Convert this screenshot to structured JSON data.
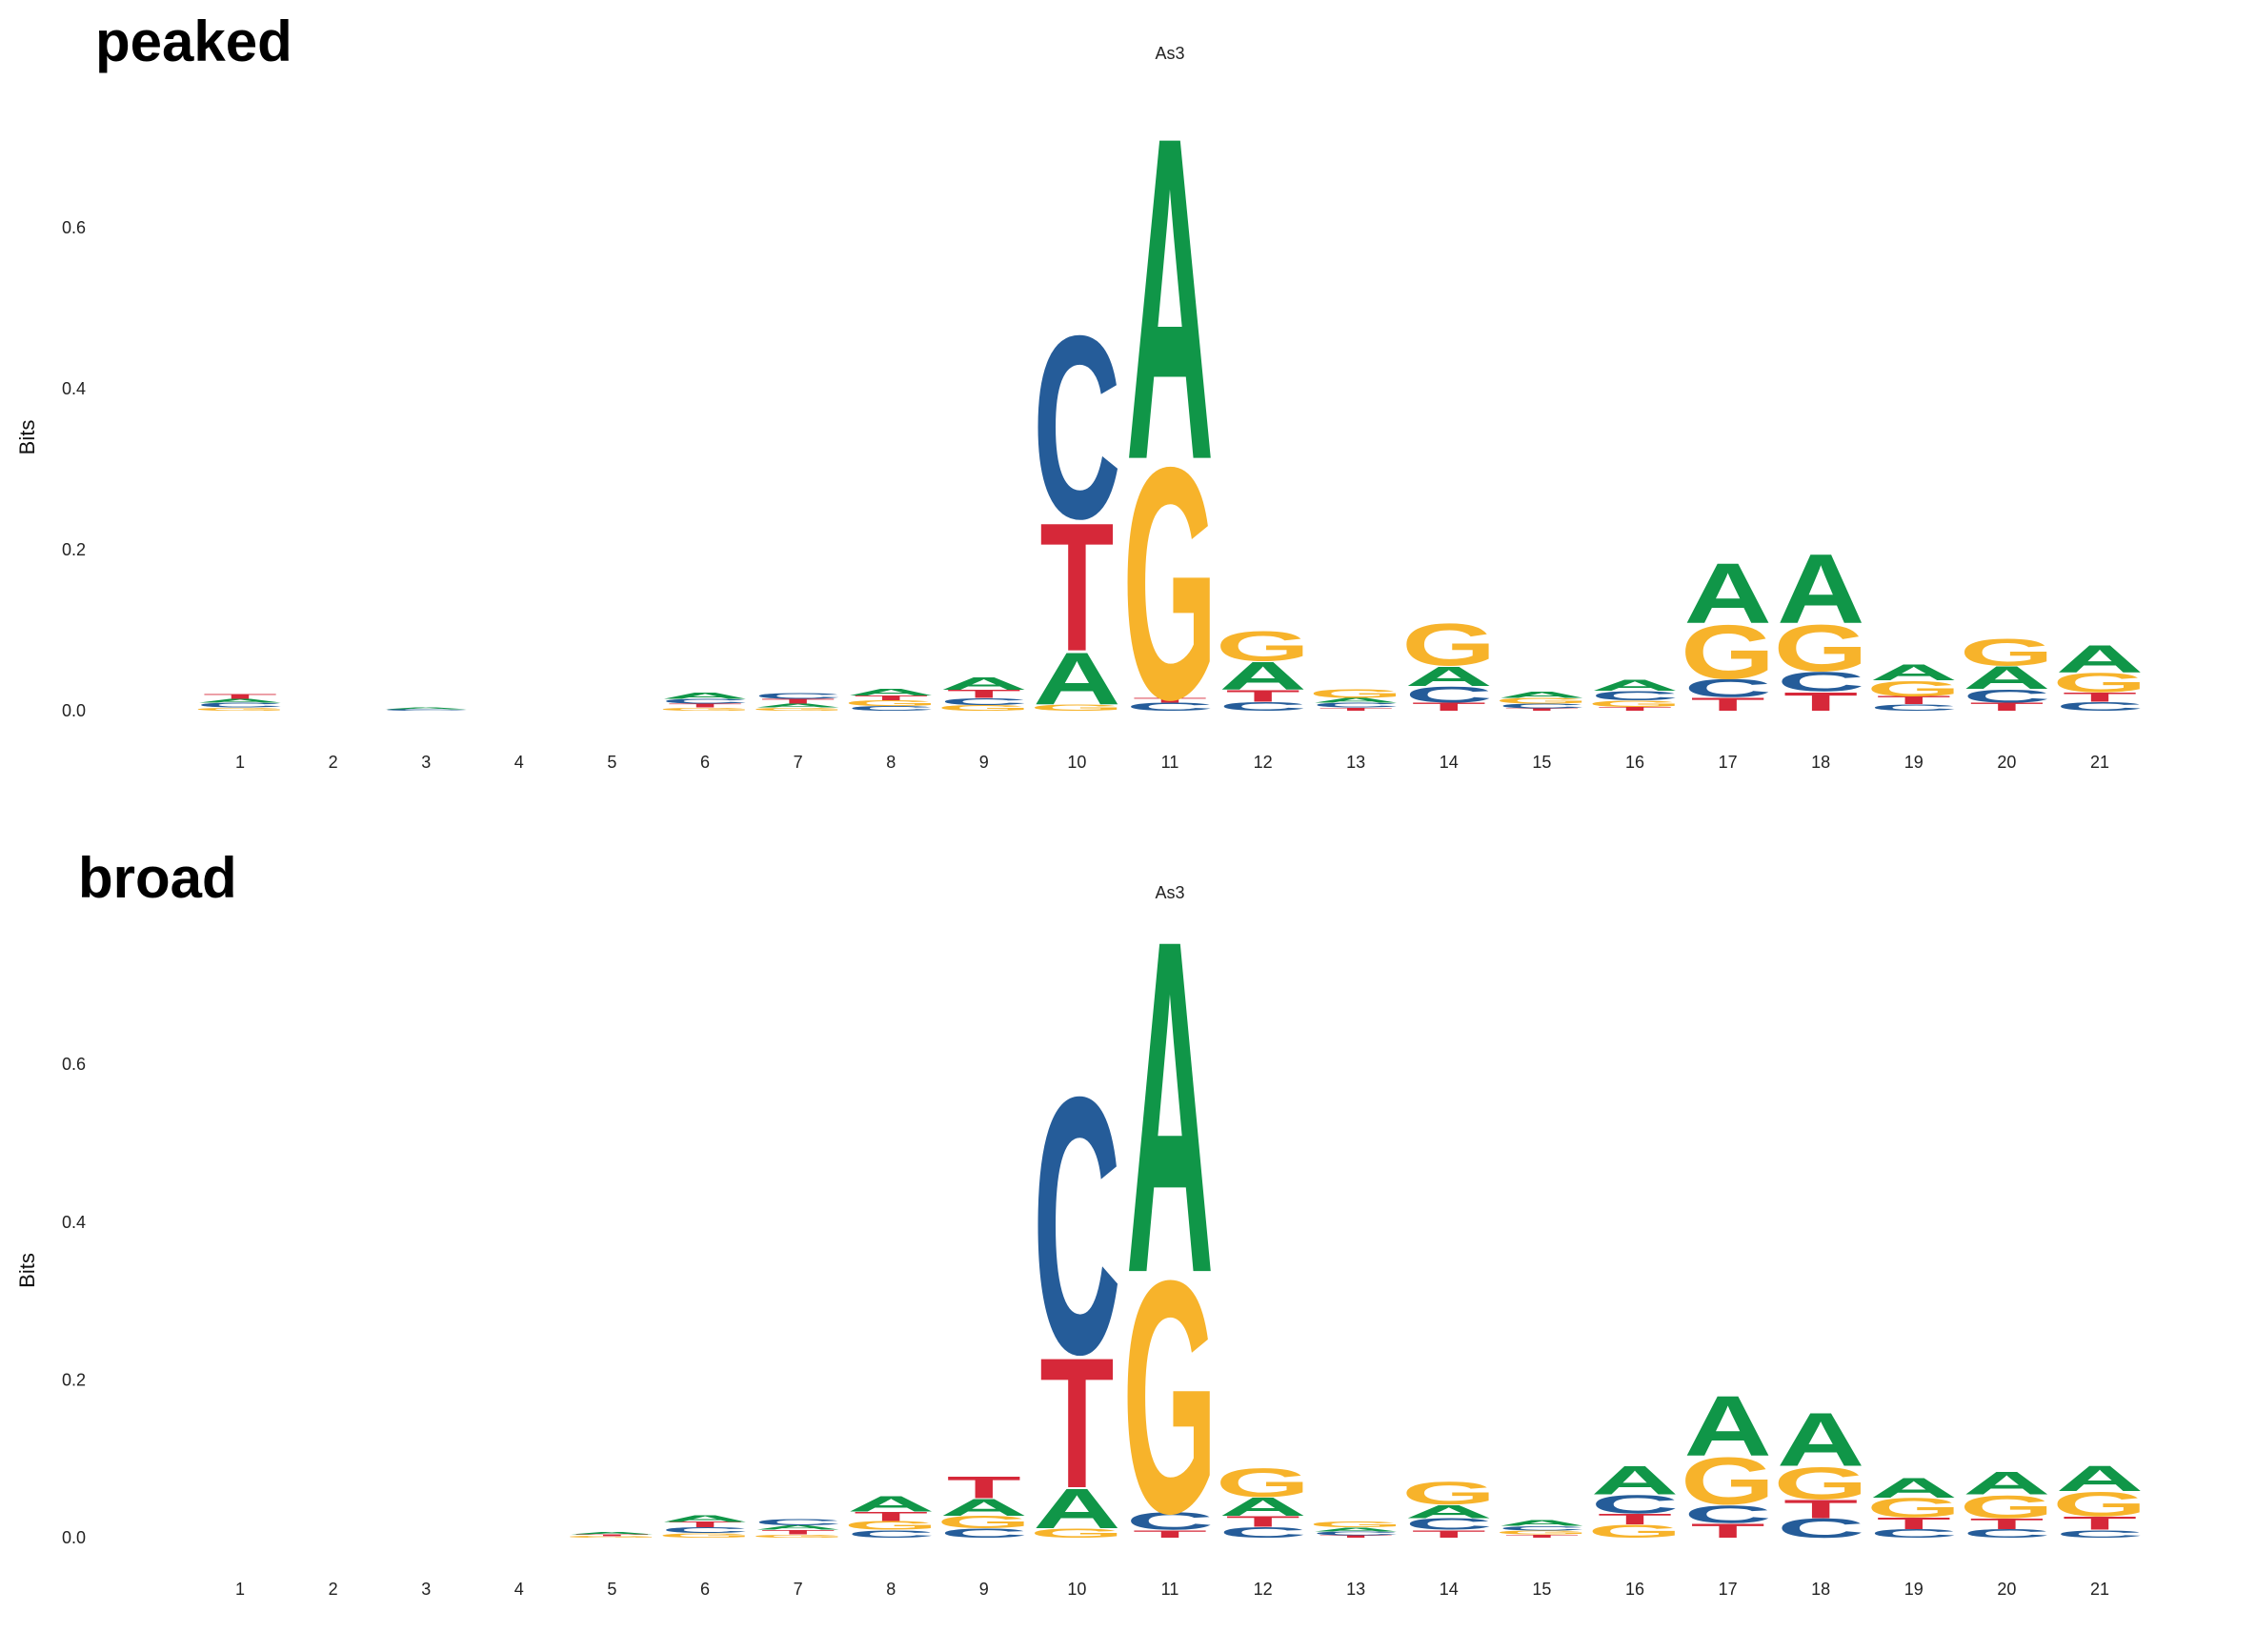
{
  "colors": {
    "A": "#109648",
    "C": "#255C99",
    "G": "#F7B32B",
    "T": "#D62839"
  },
  "chart_data": [
    {
      "type": "sequence-logo",
      "panel_label": "peaked",
      "title": "As3",
      "ylabel": "Bits",
      "ylim": [
        0,
        0.75
      ],
      "yticks": [
        "0.0",
        "0.2",
        "0.4",
        "0.6"
      ],
      "ytick_values": [
        0,
        0.2,
        0.4,
        0.6
      ],
      "positions": [
        "1",
        "2",
        "3",
        "4",
        "5",
        "6",
        "7",
        "8",
        "9",
        "10",
        "11",
        "12",
        "13",
        "14",
        "15",
        "16",
        "17",
        "18",
        "19",
        "20",
        "21"
      ],
      "stacks": [
        [
          [
            "G",
            0.004
          ],
          [
            "C",
            0.006
          ],
          [
            "A",
            0.005
          ],
          [
            "T",
            0.006
          ]
        ],
        [],
        [
          [
            "C",
            0.002
          ],
          [
            "A",
            0.002
          ]
        ],
        [],
        [],
        [
          [
            "G",
            0.004
          ],
          [
            "T",
            0.005
          ],
          [
            "C",
            0.006
          ],
          [
            "A",
            0.008
          ]
        ],
        [
          [
            "G",
            0.004
          ],
          [
            "A",
            0.005
          ],
          [
            "T",
            0.006
          ],
          [
            "C",
            0.007
          ]
        ],
        [
          [
            "C",
            0.006
          ],
          [
            "G",
            0.007
          ],
          [
            "T",
            0.006
          ],
          [
            "A",
            0.009
          ]
        ],
        [
          [
            "G",
            0.007
          ],
          [
            "C",
            0.009
          ],
          [
            "T",
            0.01
          ],
          [
            "A",
            0.016
          ]
        ],
        [
          [
            "G",
            0.008
          ],
          [
            "A",
            0.067
          ],
          [
            "T",
            0.165
          ],
          [
            "C",
            0.235
          ]
        ],
        [
          [
            "C",
            0.01
          ],
          [
            "T",
            0.006
          ],
          [
            "G",
            0.298
          ],
          [
            "A",
            0.415
          ]
        ],
        [
          [
            "C",
            0.011
          ],
          [
            "T",
            0.015
          ],
          [
            "A",
            0.036
          ],
          [
            "G",
            0.038
          ]
        ],
        [
          [
            "T",
            0.004
          ],
          [
            "C",
            0.006
          ],
          [
            "A",
            0.006
          ],
          [
            "G",
            0.011
          ]
        ],
        [
          [
            "T",
            0.01
          ],
          [
            "C",
            0.021
          ],
          [
            "A",
            0.025
          ],
          [
            "G",
            0.054
          ]
        ],
        [
          [
            "T",
            0.003
          ],
          [
            "C",
            0.006
          ],
          [
            "G",
            0.007
          ],
          [
            "A",
            0.008
          ]
        ],
        [
          [
            "T",
            0.005
          ],
          [
            "G",
            0.008
          ],
          [
            "C",
            0.012
          ],
          [
            "A",
            0.014
          ]
        ],
        [
          [
            "T",
            0.017
          ],
          [
            "C",
            0.023
          ],
          [
            "G",
            0.069
          ],
          [
            "A",
            0.077
          ]
        ],
        [
          [
            "T",
            0.024
          ],
          [
            "C",
            0.025
          ],
          [
            "G",
            0.06
          ],
          [
            "A",
            0.089
          ]
        ],
        [
          [
            "C",
            0.008
          ],
          [
            "T",
            0.01
          ],
          [
            "G",
            0.02
          ],
          [
            "A",
            0.021
          ]
        ],
        [
          [
            "T",
            0.01
          ],
          [
            "C",
            0.017
          ],
          [
            "A",
            0.029
          ],
          [
            "G",
            0.034
          ]
        ],
        [
          [
            "C",
            0.011
          ],
          [
            "T",
            0.012
          ],
          [
            "G",
            0.025
          ],
          [
            "A",
            0.035
          ]
        ]
      ]
    },
    {
      "type": "sequence-logo",
      "panel_label": "broad",
      "title": "As3",
      "ylabel": "Bits",
      "ylim": [
        0,
        0.75
      ],
      "yticks": [
        "0.0",
        "0.2",
        "0.4",
        "0.6"
      ],
      "ytick_values": [
        0,
        0.2,
        0.4,
        0.6
      ],
      "positions": [
        "1",
        "2",
        "3",
        "4",
        "5",
        "6",
        "7",
        "8",
        "9",
        "10",
        "11",
        "12",
        "13",
        "14",
        "15",
        "16",
        "17",
        "18",
        "19",
        "20",
        "21"
      ],
      "stacks": [
        [],
        [],
        [],
        [],
        [
          [
            "G",
            0.002
          ],
          [
            "T",
            0.002
          ],
          [
            "A",
            0.003
          ]
        ],
        [
          [
            "G",
            0.006
          ],
          [
            "C",
            0.007
          ],
          [
            "T",
            0.007
          ],
          [
            "A",
            0.009
          ]
        ],
        [
          [
            "G",
            0.004
          ],
          [
            "T",
            0.006
          ],
          [
            "A",
            0.006
          ],
          [
            "C",
            0.008
          ]
        ],
        [
          [
            "C",
            0.01
          ],
          [
            "G",
            0.011
          ],
          [
            "T",
            0.012
          ],
          [
            "A",
            0.02
          ]
        ],
        [
          [
            "C",
            0.012
          ],
          [
            "G",
            0.016
          ],
          [
            "A",
            0.022
          ],
          [
            "T",
            0.028
          ]
        ],
        [
          [
            "G",
            0.012
          ],
          [
            "A",
            0.052
          ],
          [
            "T",
            0.171
          ],
          [
            "C",
            0.337
          ]
        ],
        [
          [
            "T",
            0.01
          ],
          [
            "C",
            0.023
          ],
          [
            "G",
            0.305
          ],
          [
            "A",
            0.437
          ]
        ],
        [
          [
            "C",
            0.014
          ],
          [
            "T",
            0.014
          ],
          [
            "A",
            0.024
          ],
          [
            "G",
            0.037
          ]
        ],
        [
          [
            "T",
            0.003
          ],
          [
            "C",
            0.005
          ],
          [
            "A",
            0.005
          ],
          [
            "G",
            0.007
          ]
        ],
        [
          [
            "T",
            0.01
          ],
          [
            "C",
            0.015
          ],
          [
            "A",
            0.017
          ],
          [
            "G",
            0.03
          ]
        ],
        [
          [
            "T",
            0.004
          ],
          [
            "G",
            0.005
          ],
          [
            "C",
            0.006
          ],
          [
            "A",
            0.007
          ]
        ],
        [
          [
            "G",
            0.017
          ],
          [
            "T",
            0.014
          ],
          [
            "C",
            0.024
          ],
          [
            "A",
            0.037
          ]
        ],
        [
          [
            "T",
            0.019
          ],
          [
            "C",
            0.023
          ],
          [
            "G",
            0.062
          ],
          [
            "A",
            0.079
          ]
        ],
        [
          [
            "C",
            0.025
          ],
          [
            "T",
            0.024
          ],
          [
            "G",
            0.042
          ],
          [
            "A",
            0.07
          ]
        ],
        [
          [
            "C",
            0.011
          ],
          [
            "T",
            0.015
          ],
          [
            "G",
            0.025
          ],
          [
            "A",
            0.026
          ]
        ],
        [
          [
            "C",
            0.011
          ],
          [
            "T",
            0.014
          ],
          [
            "G",
            0.03
          ],
          [
            "A",
            0.03
          ]
        ],
        [
          [
            "C",
            0.01
          ],
          [
            "T",
            0.017
          ],
          [
            "G",
            0.032
          ],
          [
            "A",
            0.033
          ]
        ]
      ]
    }
  ]
}
